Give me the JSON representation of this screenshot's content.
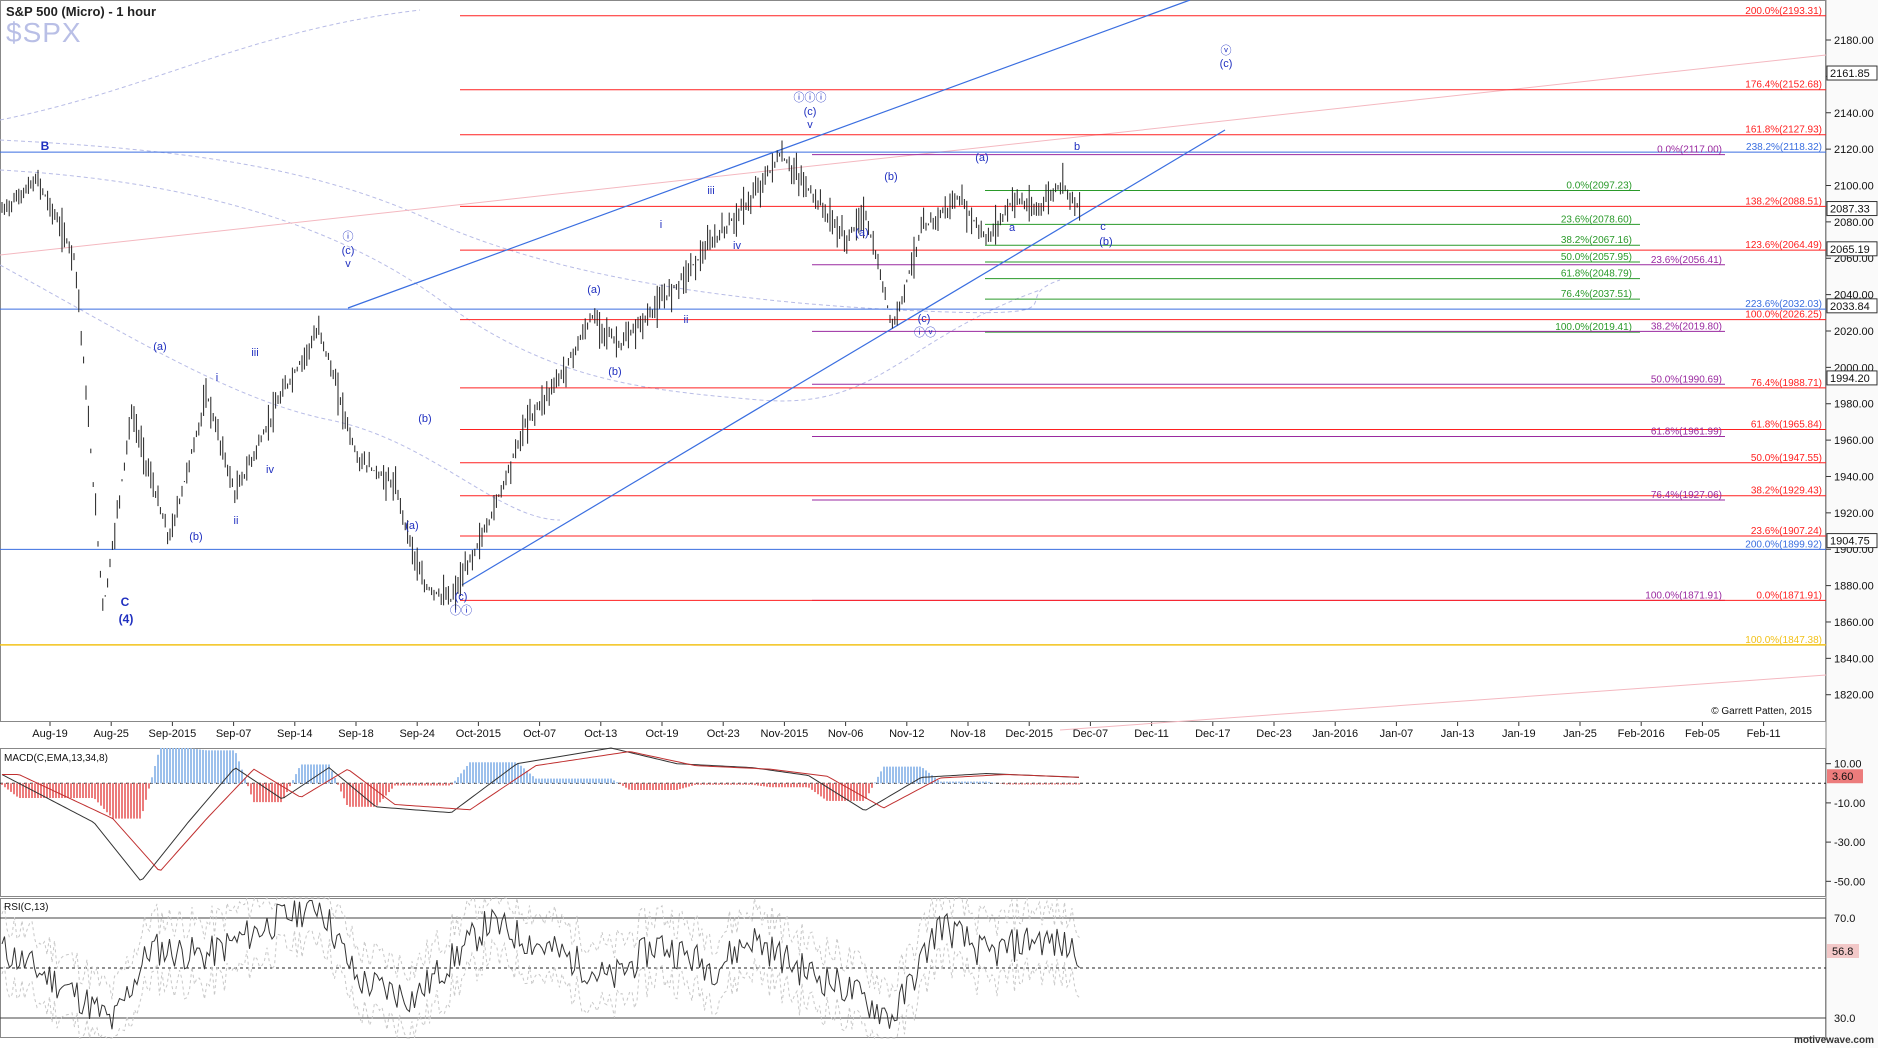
{
  "header": {
    "title": "S&P 500 (Micro) - 1 hour",
    "symbol": "$SPX"
  },
  "credit": "© Garrett Patten, 2015",
  "watermark": "motivewave.com",
  "colors": {
    "fib_red": "#ff2020",
    "fib_green": "#2a9a2a",
    "fib_purple": "#9a2aa0",
    "trend_blue": "#3a6ee0",
    "wave_blue": "#2030c0",
    "gold": "#f2c21a",
    "price_bar": "#222222",
    "macd_pos": "#9cc0ec",
    "macd_neg": "#ec7c7c",
    "rsi_pos": "#a89ce0",
    "rsi_neg": "#e4a0a0"
  },
  "chart_data": [
    {
      "type": "line",
      "panel": "price",
      "ylim": [
        1805,
        2202
      ],
      "y_ticks": [
        1820,
        1840,
        1860,
        1880,
        1900,
        1920,
        1940,
        1960,
        1980,
        2000,
        2020,
        2040,
        2060,
        2080,
        2100,
        2120,
        2140,
        2160,
        2180
      ],
      "x_tick_labels": [
        "Aug-19",
        "Aug-25",
        "Sep-2015",
        "Sep-07",
        "Sep-14",
        "Sep-18",
        "Sep-24",
        "Oct-2015",
        "Oct-07",
        "Oct-13",
        "Oct-19",
        "Oct-23",
        "Nov-2015",
        "Nov-06",
        "Nov-12",
        "Nov-18",
        "Dec-2015",
        "Dec-07",
        "Dec-11",
        "Dec-17",
        "Dec-23",
        "Jan-2016",
        "Jan-07",
        "Jan-13",
        "Jan-19",
        "Jan-25",
        "Feb-2016",
        "Feb-05",
        "Feb-11"
      ],
      "price_series": {
        "name": "S&P 500",
        "style": "hlc-bars",
        "key_points": [
          [
            0,
            2085
          ],
          [
            0.04,
            2103
          ],
          [
            0.08,
            2060
          ],
          [
            0.11,
            1867
          ],
          [
            0.14,
            1975
          ],
          [
            0.18,
            1905
          ],
          [
            0.22,
            1985
          ],
          [
            0.25,
            1930
          ],
          [
            0.3,
            1985
          ],
          [
            0.34,
            2021
          ],
          [
            0.38,
            1950
          ],
          [
            0.42,
            1935
          ],
          [
            0.45,
            1880
          ],
          [
            0.48,
            1872
          ],
          [
            0.52,
            1915
          ],
          [
            0.56,
            1970
          ],
          [
            0.6,
            1998
          ],
          [
            0.63,
            2028
          ],
          [
            0.66,
            2012
          ],
          [
            0.7,
            2034
          ],
          [
            0.73,
            2052
          ],
          [
            0.76,
            2070
          ],
          [
            0.8,
            2093
          ],
          [
            0.83,
            2117
          ],
          [
            0.86,
            2098
          ],
          [
            0.9,
            2070
          ],
          [
            0.92,
            2085
          ],
          [
            0.95,
            2022
          ],
          [
            0.98,
            2075
          ],
          [
            1.02,
            2093
          ],
          [
            1.05,
            2070
          ],
          [
            1.08,
            2094
          ],
          [
            1.1,
            2085
          ],
          [
            1.13,
            2102
          ],
          [
            1.15,
            2086
          ]
        ]
      },
      "current_price_tags": [
        "2087.33",
        "2065.19",
        "2033.84",
        "1994.20",
        "1904.75",
        "2161.85"
      ],
      "fib_levels": [
        {
          "label": "200.0%(2193.31)",
          "value": 2193.31,
          "color": "red"
        },
        {
          "label": "176.4%(2152.68)",
          "value": 2152.68,
          "color": "red"
        },
        {
          "label": "161.8%(2127.93)",
          "value": 2127.93,
          "color": "red"
        },
        {
          "label": "238.2%(2118.32)",
          "value": 2118.32,
          "color": "blue"
        },
        {
          "label": "0.0%(2117.00)",
          "value": 2117.0,
          "color": "purple"
        },
        {
          "label": "0.0%(2097.23)",
          "value": 2097.23,
          "color": "green"
        },
        {
          "label": "138.2%(2088.51)",
          "value": 2088.51,
          "color": "red"
        },
        {
          "label": "23.6%(2078.60)",
          "value": 2078.6,
          "color": "green"
        },
        {
          "label": "38.2%(2067.16)",
          "value": 2067.16,
          "color": "green"
        },
        {
          "label": "123.6%(2064.49)",
          "value": 2064.49,
          "color": "red"
        },
        {
          "label": "50.0%(2057.95)",
          "value": 2057.95,
          "color": "green"
        },
        {
          "label": "23.6%(2056.41)",
          "value": 2056.41,
          "color": "purple"
        },
        {
          "label": "61.8%(2048.79)",
          "value": 2048.79,
          "color": "green"
        },
        {
          "label": "76.4%(2037.51)",
          "value": 2037.51,
          "color": "green"
        },
        {
          "label": "223.6%(2032.03)",
          "value": 2032.03,
          "color": "blue"
        },
        {
          "label": "100.0%(2026.25)",
          "value": 2026.25,
          "color": "red"
        },
        {
          "label": "100.0%(2019.41)",
          "value": 2019.41,
          "color": "green"
        },
        {
          "label": "38.2%(2019.80)",
          "value": 2019.8,
          "color": "purple"
        },
        {
          "label": "50.0%(1990.69)",
          "value": 1990.69,
          "color": "purple"
        },
        {
          "label": "76.4%(1988.71)",
          "value": 1988.71,
          "color": "red"
        },
        {
          "label": "61.8%(1965.84)",
          "value": 1965.84,
          "color": "red"
        },
        {
          "label": "61.8%(1961.99)",
          "value": 1961.99,
          "color": "purple"
        },
        {
          "label": "50.0%(1947.55)",
          "value": 1947.55,
          "color": "red"
        },
        {
          "label": "38.2%(1929.43)",
          "value": 1929.43,
          "color": "red"
        },
        {
          "label": "76.4%(1927.06)",
          "value": 1927.06,
          "color": "purple"
        },
        {
          "label": "23.6%(1907.24)",
          "value": 1907.24,
          "color": "red"
        },
        {
          "label": "200.0%(1899.92)",
          "value": 1899.92,
          "color": "blue"
        },
        {
          "label": "100.0%(1871.91)",
          "value": 1871.91,
          "color": "purple"
        },
        {
          "label": "0.0%(1871.91)",
          "value": 1871.91,
          "color": "red"
        },
        {
          "label": "100.0%(1847.38)",
          "value": 1847.38,
          "color": "gold"
        }
      ],
      "wave_labels": [
        "B",
        "C",
        "(4)",
        "(a)",
        "i",
        "iii",
        "(b)",
        "ii",
        "iv",
        "ⓘ",
        "(c)",
        "v",
        "(a)",
        "(b)",
        "(c)",
        "ⓘⓘ",
        "(a)",
        "(b)",
        "i",
        "iii",
        "ii",
        "iv",
        "ⓘⓘⓘ",
        "(c)",
        "v",
        "(a)",
        "(b)",
        "(c)",
        "ⓘⓥ",
        "(a)",
        "a",
        "b",
        "c",
        "(b)",
        "ⓥ",
        "(c)"
      ]
    },
    {
      "type": "bar",
      "panel": "macd",
      "title": "MACD(C,EMA,13,34,8)",
      "ylim": [
        -58,
        18
      ],
      "y_ticks": [
        10.0,
        -10.0,
        -30.0,
        -50.0
      ],
      "y_tick_labels": [
        "10.00",
        "-10.00",
        "-30.00",
        "-50.00"
      ],
      "current_value": "3.60",
      "macd_key_points": [
        [
          0,
          5
        ],
        [
          0.1,
          -20
        ],
        [
          0.15,
          -50
        ],
        [
          0.2,
          -20
        ],
        [
          0.25,
          8
        ],
        [
          0.3,
          -8
        ],
        [
          0.35,
          8
        ],
        [
          0.4,
          -12
        ],
        [
          0.48,
          -15
        ],
        [
          0.55,
          10
        ],
        [
          0.65,
          18
        ],
        [
          0.72,
          10
        ],
        [
          0.8,
          8
        ],
        [
          0.86,
          4
        ],
        [
          0.92,
          -14
        ],
        [
          0.98,
          3
        ],
        [
          1.05,
          5
        ],
        [
          1.15,
          3
        ]
      ]
    },
    {
      "type": "line",
      "panel": "rsi",
      "title": "RSI(C,13)",
      "ylim": [
        22,
        78
      ],
      "y_ticks": [
        70.0,
        30.0
      ],
      "y_tick_labels": [
        "70.0",
        "30.0"
      ],
      "current_value": "56.8",
      "rsi_key_points": [
        [
          0,
          58
        ],
        [
          0.08,
          40
        ],
        [
          0.12,
          28
        ],
        [
          0.16,
          58
        ],
        [
          0.22,
          55
        ],
        [
          0.3,
          70
        ],
        [
          0.34,
          76
        ],
        [
          0.38,
          45
        ],
        [
          0.44,
          38
        ],
        [
          0.52,
          68
        ],
        [
          0.6,
          55
        ],
        [
          0.65,
          45
        ],
        [
          0.7,
          60
        ],
        [
          0.76,
          50
        ],
        [
          0.8,
          62
        ],
        [
          0.85,
          50
        ],
        [
          0.9,
          42
        ],
        [
          0.95,
          30
        ],
        [
          1.0,
          68
        ],
        [
          1.05,
          55
        ],
        [
          1.1,
          62
        ],
        [
          1.15,
          56.8
        ]
      ]
    }
  ]
}
